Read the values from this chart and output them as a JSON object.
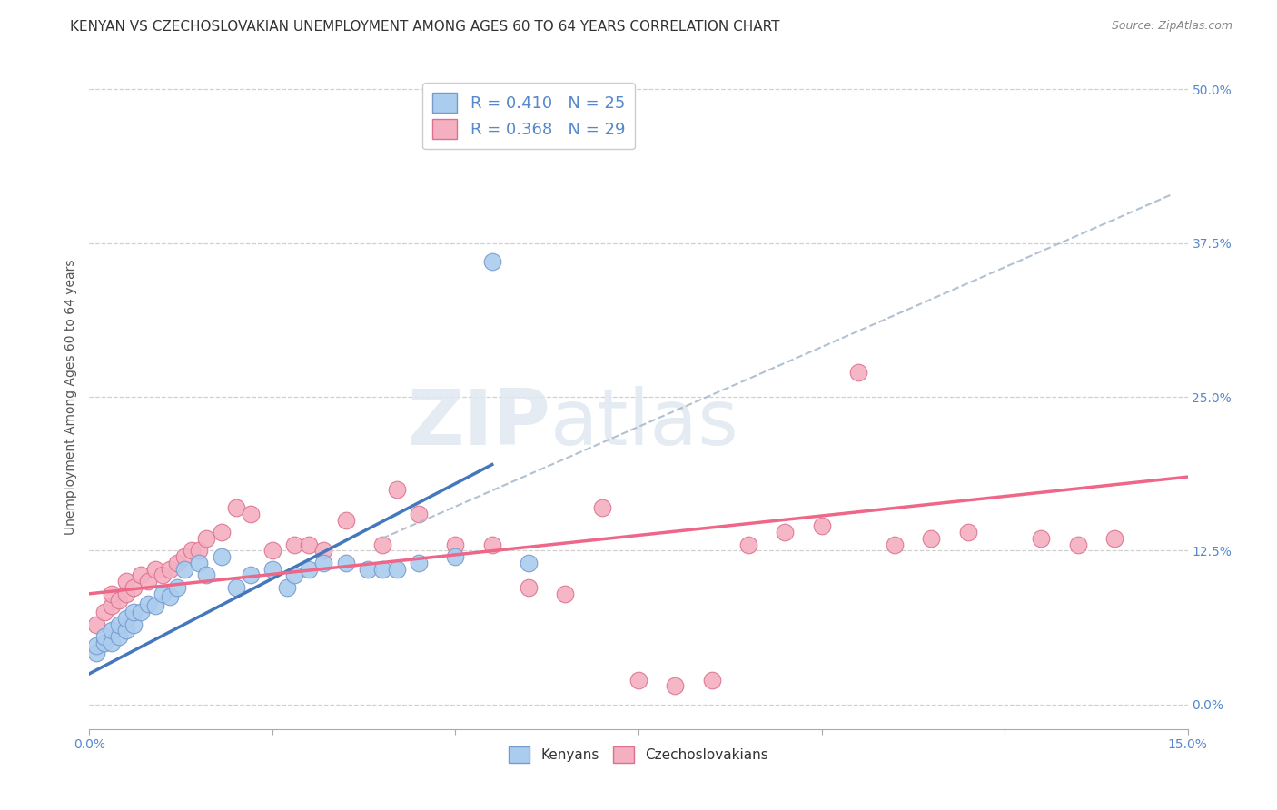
{
  "title": "KENYAN VS CZECHOSLOVAKIAN UNEMPLOYMENT AMONG AGES 60 TO 64 YEARS CORRELATION CHART",
  "source": "Source: ZipAtlas.com",
  "ylabel": "Unemployment Among Ages 60 to 64 years",
  "xlim": [
    0.0,
    0.15
  ],
  "ylim": [
    -0.02,
    0.52
  ],
  "yticks_right": [
    0.0,
    0.125,
    0.25,
    0.375,
    0.5
  ],
  "xticks": [
    0.0,
    0.025,
    0.05,
    0.075,
    0.1,
    0.125,
    0.15
  ],
  "background_color": "#ffffff",
  "grid_color": "#d0d0d0",
  "kenyan_color": "#aaccee",
  "kenyan_edge_color": "#7799cc",
  "czechoslovakian_color": "#f4b0c0",
  "czechoslovakian_edge_color": "#dd7090",
  "kenyan_R": 0.41,
  "kenyan_N": 25,
  "czechoslovakian_R": 0.368,
  "czechoslovakian_N": 29,
  "kenyan_scatter_x": [
    0.001,
    0.001,
    0.002,
    0.002,
    0.003,
    0.003,
    0.004,
    0.004,
    0.005,
    0.005,
    0.006,
    0.006,
    0.007,
    0.008,
    0.009,
    0.01,
    0.011,
    0.012,
    0.013,
    0.015,
    0.016,
    0.018,
    0.02,
    0.022,
    0.025,
    0.027,
    0.028,
    0.03,
    0.032,
    0.035,
    0.038,
    0.04,
    0.042,
    0.045,
    0.05,
    0.055,
    0.06
  ],
  "kenyan_scatter_y": [
    0.042,
    0.048,
    0.05,
    0.055,
    0.05,
    0.06,
    0.055,
    0.065,
    0.06,
    0.07,
    0.065,
    0.075,
    0.075,
    0.082,
    0.08,
    0.09,
    0.088,
    0.095,
    0.11,
    0.115,
    0.105,
    0.12,
    0.095,
    0.105,
    0.11,
    0.095,
    0.105,
    0.11,
    0.115,
    0.115,
    0.11,
    0.11,
    0.11,
    0.115,
    0.12,
    0.36,
    0.115
  ],
  "czechoslovakian_scatter_x": [
    0.001,
    0.002,
    0.003,
    0.003,
    0.004,
    0.005,
    0.005,
    0.006,
    0.007,
    0.008,
    0.009,
    0.01,
    0.011,
    0.012,
    0.013,
    0.014,
    0.015,
    0.016,
    0.018,
    0.02,
    0.022,
    0.025,
    0.028,
    0.03,
    0.032,
    0.035,
    0.04,
    0.042,
    0.045,
    0.05,
    0.055,
    0.06,
    0.065,
    0.07,
    0.075,
    0.08,
    0.085,
    0.09,
    0.095,
    0.1,
    0.105,
    0.11,
    0.115,
    0.12,
    0.13,
    0.135,
    0.14
  ],
  "czechoslovakian_scatter_y": [
    0.065,
    0.075,
    0.08,
    0.09,
    0.085,
    0.09,
    0.1,
    0.095,
    0.105,
    0.1,
    0.11,
    0.105,
    0.11,
    0.115,
    0.12,
    0.125,
    0.125,
    0.135,
    0.14,
    0.16,
    0.155,
    0.125,
    0.13,
    0.13,
    0.125,
    0.15,
    0.13,
    0.175,
    0.155,
    0.13,
    0.13,
    0.095,
    0.09,
    0.16,
    0.02,
    0.015,
    0.02,
    0.13,
    0.14,
    0.145,
    0.27,
    0.13,
    0.135,
    0.14,
    0.135,
    0.13,
    0.135
  ],
  "kenyan_line_x": [
    0.0,
    0.055
  ],
  "kenyan_line_y": [
    0.025,
    0.195
  ],
  "czechoslovakian_line_x": [
    0.0,
    0.15
  ],
  "czechoslovakian_line_y": [
    0.09,
    0.185
  ],
  "dashed_line_x": [
    0.04,
    0.148
  ],
  "dashed_line_y": [
    0.135,
    0.415
  ],
  "watermark_zip": "ZIP",
  "watermark_atlas": "atlas",
  "title_fontsize": 11,
  "axis_label_fontsize": 10,
  "tick_fontsize": 10,
  "legend_fontsize": 13
}
